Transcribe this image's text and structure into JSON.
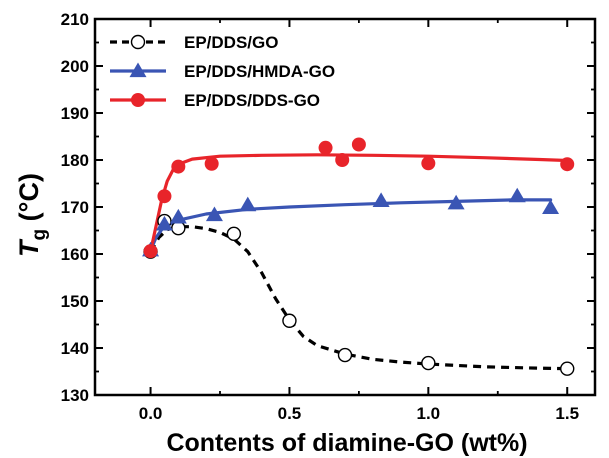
{
  "chart_data": {
    "type": "scatter",
    "title": "",
    "xlabel": "Contents of diamine-GO (wt%)",
    "ylabel": {
      "main": "T",
      "subscript": "g",
      "unit": " (°C)"
    },
    "xlim": [
      -0.2,
      1.6
    ],
    "ylim": [
      130,
      210
    ],
    "x_ticks": [
      0.0,
      0.5,
      1.0,
      1.5
    ],
    "x_tick_labels": [
      "0.0",
      "0.5",
      "1.0",
      "1.5"
    ],
    "y_ticks": [
      130,
      140,
      150,
      160,
      170,
      180,
      190,
      200,
      210
    ],
    "y_tick_labels": [
      "130",
      "140",
      "150",
      "160",
      "170",
      "180",
      "190",
      "200",
      "210"
    ],
    "grid": false,
    "legend_position": "top-left",
    "series": [
      {
        "name": "EP/DDS/GO",
        "color": "#000000",
        "marker": "open-circle",
        "line_style": "dashed",
        "points": [
          [
            0.0,
            160.5
          ],
          [
            0.05,
            167.0
          ],
          [
            0.1,
            165.5
          ],
          [
            0.3,
            164.3
          ],
          [
            0.5,
            145.8
          ],
          [
            0.7,
            138.5
          ],
          [
            1.0,
            136.8
          ],
          [
            1.5,
            135.6
          ]
        ],
        "fit": [
          [
            0.0,
            160.5
          ],
          [
            0.03,
            163.5
          ],
          [
            0.06,
            165.2
          ],
          [
            0.1,
            165.8
          ],
          [
            0.15,
            165.8
          ],
          [
            0.2,
            165.4
          ],
          [
            0.25,
            164.6
          ],
          [
            0.3,
            163.2
          ],
          [
            0.35,
            160.5
          ],
          [
            0.4,
            156.0
          ],
          [
            0.45,
            150.5
          ],
          [
            0.5,
            146.0
          ],
          [
            0.55,
            142.5
          ],
          [
            0.6,
            140.5
          ],
          [
            0.7,
            138.7
          ],
          [
            0.8,
            137.6
          ],
          [
            0.9,
            137.0
          ],
          [
            1.0,
            136.6
          ],
          [
            1.2,
            136.0
          ],
          [
            1.4,
            135.7
          ],
          [
            1.5,
            135.6
          ]
        ]
      },
      {
        "name": "EP/DDS/HMDA-GO",
        "color": "#3a55b4",
        "marker": "filled-triangle",
        "line_style": "solid",
        "points": [
          [
            0.0,
            160.8
          ],
          [
            0.05,
            166.3
          ],
          [
            0.1,
            167.8
          ],
          [
            0.23,
            168.3
          ],
          [
            0.35,
            170.4
          ],
          [
            0.83,
            171.3
          ],
          [
            1.1,
            170.8
          ],
          [
            1.32,
            172.3
          ],
          [
            1.44,
            169.8
          ]
        ],
        "fit": [
          [
            0.0,
            160.8
          ],
          [
            0.02,
            163.5
          ],
          [
            0.04,
            165.2
          ],
          [
            0.07,
            166.4
          ],
          [
            0.1,
            167.2
          ],
          [
            0.2,
            168.5
          ],
          [
            0.35,
            169.5
          ],
          [
            0.5,
            170.0
          ],
          [
            0.7,
            170.5
          ],
          [
            0.9,
            170.9
          ],
          [
            1.1,
            171.2
          ],
          [
            1.3,
            171.5
          ],
          [
            1.44,
            171.5
          ]
        ]
      },
      {
        "name": "EP/DDS/DDS-GO",
        "color": "#e8242a",
        "marker": "filled-circle",
        "line_style": "solid",
        "points": [
          [
            0.0,
            160.6
          ],
          [
            0.05,
            172.3
          ],
          [
            0.1,
            178.6
          ],
          [
            0.22,
            179.2
          ],
          [
            0.63,
            182.6
          ],
          [
            0.69,
            180.0
          ],
          [
            0.75,
            183.3
          ],
          [
            1.0,
            179.3
          ],
          [
            1.5,
            179.1
          ]
        ],
        "fit": [
          [
            0.0,
            160.6
          ],
          [
            0.02,
            166.0
          ],
          [
            0.04,
            171.5
          ],
          [
            0.06,
            175.5
          ],
          [
            0.08,
            177.8
          ],
          [
            0.11,
            179.3
          ],
          [
            0.15,
            180.2
          ],
          [
            0.25,
            180.8
          ],
          [
            0.4,
            181.0
          ],
          [
            0.6,
            181.1
          ],
          [
            0.8,
            181.0
          ],
          [
            1.0,
            180.8
          ],
          [
            1.2,
            180.5
          ],
          [
            1.4,
            180.1
          ],
          [
            1.5,
            179.9
          ]
        ]
      }
    ]
  }
}
